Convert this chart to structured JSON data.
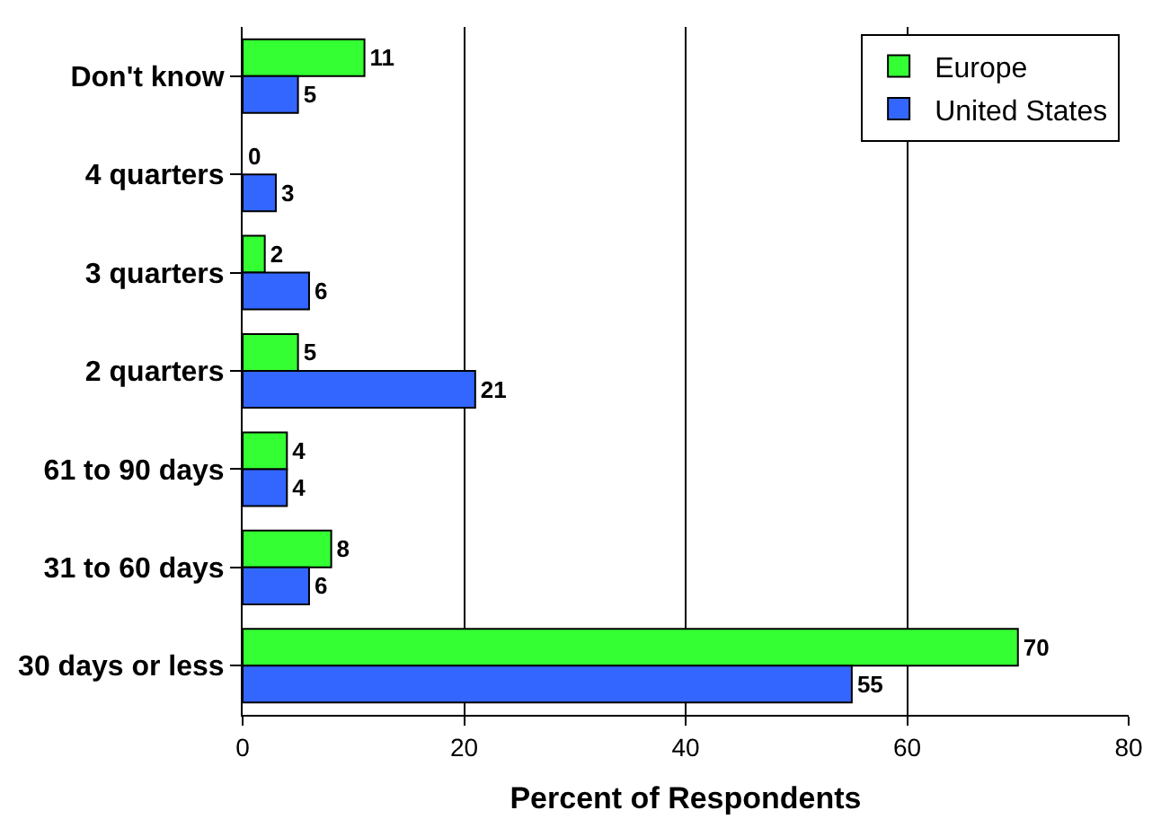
{
  "chart_data": {
    "type": "bar",
    "orientation": "horizontal",
    "xlabel": "Percent of Respondents",
    "categories": [
      "Don't know",
      "4 quarters",
      "3 quarters",
      "2 quarters",
      "61 to 90 days",
      "31 to 60 days",
      "30 days or less"
    ],
    "series": [
      {
        "name": "Europe",
        "color": "#33ff33",
        "values": [
          11,
          0,
          2,
          5,
          4,
          8,
          70
        ]
      },
      {
        "name": "United States",
        "color": "#3366ff",
        "values": [
          5,
          3,
          6,
          21,
          4,
          6,
          55
        ]
      }
    ],
    "xlim": [
      0,
      80
    ],
    "xticks": [
      0,
      20,
      40,
      60,
      80
    ],
    "grid": "x",
    "legend": "top right",
    "data_labels": true
  }
}
